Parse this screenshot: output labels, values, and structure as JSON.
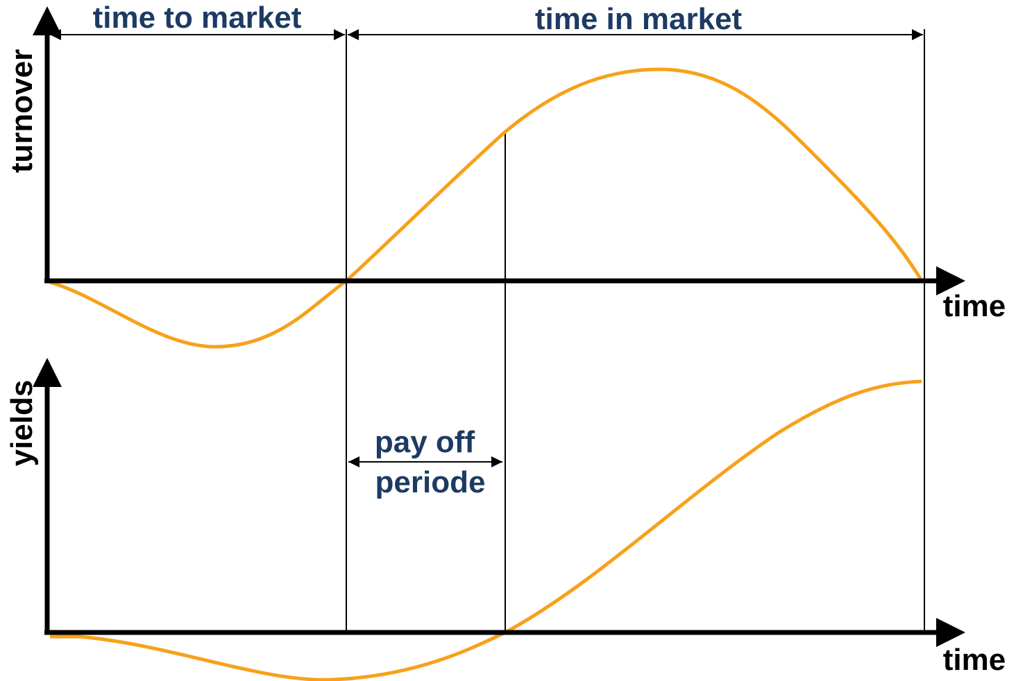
{
  "spans": [
    "time to market",
    "time in market"
  ],
  "top_chart": {
    "y_label": "turnover",
    "x_label": "time"
  },
  "bottom_chart": {
    "y_label": "yields",
    "x_label": "time"
  },
  "annotation": [
    "pay off",
    "periode"
  ]
}
